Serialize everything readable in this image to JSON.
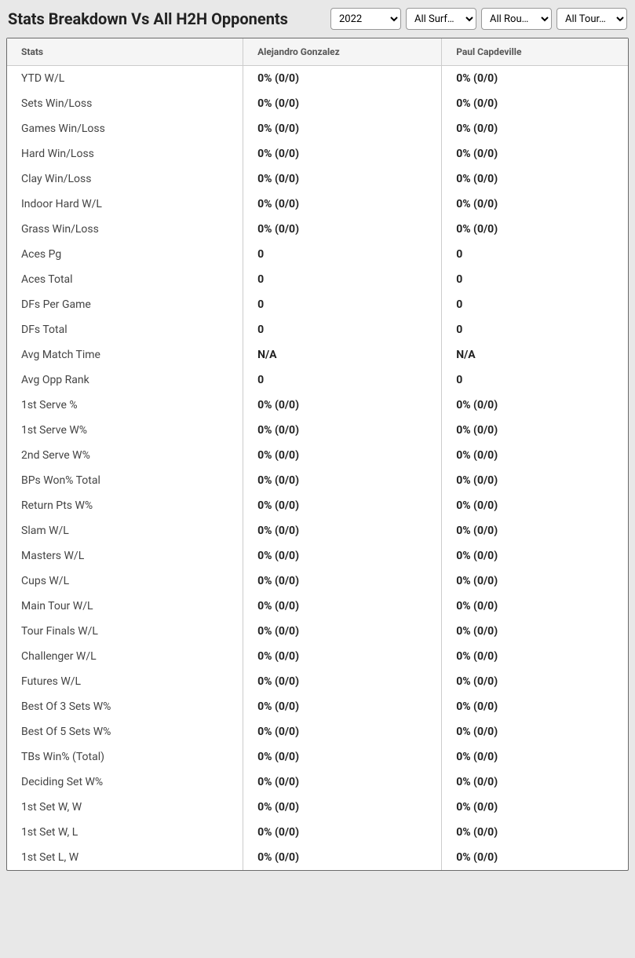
{
  "header": {
    "title": "Stats Breakdown Vs All H2H Opponents"
  },
  "filters": {
    "year": {
      "selected": "2022",
      "options": [
        "2022"
      ]
    },
    "surface": {
      "selected": "All Surf…",
      "options": [
        "All Surf…"
      ]
    },
    "round": {
      "selected": "All Rou…",
      "options": [
        "All Rou…"
      ]
    },
    "tour": {
      "selected": "All Tour…",
      "options": [
        "All Tour…"
      ]
    }
  },
  "table": {
    "columns": [
      "Stats",
      "Alejandro Gonzalez",
      "Paul Capdeville"
    ],
    "rows": [
      [
        "YTD W/L",
        "0% (0/0)",
        "0% (0/0)"
      ],
      [
        "Sets Win/Loss",
        "0% (0/0)",
        "0% (0/0)"
      ],
      [
        "Games Win/Loss",
        "0% (0/0)",
        "0% (0/0)"
      ],
      [
        "Hard Win/Loss",
        "0% (0/0)",
        "0% (0/0)"
      ],
      [
        "Clay Win/Loss",
        "0% (0/0)",
        "0% (0/0)"
      ],
      [
        "Indoor Hard W/L",
        "0% (0/0)",
        "0% (0/0)"
      ],
      [
        "Grass Win/Loss",
        "0% (0/0)",
        "0% (0/0)"
      ],
      [
        "Aces Pg",
        "0",
        "0"
      ],
      [
        "Aces Total",
        "0",
        "0"
      ],
      [
        "DFs Per Game",
        "0",
        "0"
      ],
      [
        "DFs Total",
        "0",
        "0"
      ],
      [
        "Avg Match Time",
        "N/A",
        "N/A"
      ],
      [
        "Avg Opp Rank",
        "0",
        "0"
      ],
      [
        "1st Serve %",
        "0% (0/0)",
        "0% (0/0)"
      ],
      [
        "1st Serve W%",
        "0% (0/0)",
        "0% (0/0)"
      ],
      [
        "2nd Serve W%",
        "0% (0/0)",
        "0% (0/0)"
      ],
      [
        "BPs Won% Total",
        "0% (0/0)",
        "0% (0/0)"
      ],
      [
        "Return Pts W%",
        "0% (0/0)",
        "0% (0/0)"
      ],
      [
        "Slam W/L",
        "0% (0/0)",
        "0% (0/0)"
      ],
      [
        "Masters W/L",
        "0% (0/0)",
        "0% (0/0)"
      ],
      [
        "Cups W/L",
        "0% (0/0)",
        "0% (0/0)"
      ],
      [
        "Main Tour W/L",
        "0% (0/0)",
        "0% (0/0)"
      ],
      [
        "Tour Finals W/L",
        "0% (0/0)",
        "0% (0/0)"
      ],
      [
        "Challenger W/L",
        "0% (0/0)",
        "0% (0/0)"
      ],
      [
        "Futures W/L",
        "0% (0/0)",
        "0% (0/0)"
      ],
      [
        "Best Of 3 Sets W%",
        "0% (0/0)",
        "0% (0/0)"
      ],
      [
        "Best Of 5 Sets W%",
        "0% (0/0)",
        "0% (0/0)"
      ],
      [
        "TBs Win% (Total)",
        "0% (0/0)",
        "0% (0/0)"
      ],
      [
        "Deciding Set W%",
        "0% (0/0)",
        "0% (0/0)"
      ],
      [
        "1st Set W, W",
        "0% (0/0)",
        "0% (0/0)"
      ],
      [
        "1st Set W, L",
        "0% (0/0)",
        "0% (0/0)"
      ],
      [
        "1st Set L, W",
        "0% (0/0)",
        "0% (0/0)"
      ]
    ]
  },
  "style": {
    "bg_color": "#e8e8e8",
    "table_bg": "#ffffff",
    "header_bg": "#f5f5f5",
    "border_color": "#cccccc",
    "outer_border": "#6a6a6a",
    "title_fontsize": 20,
    "th_fontsize": 12,
    "td_fontsize": 14
  }
}
